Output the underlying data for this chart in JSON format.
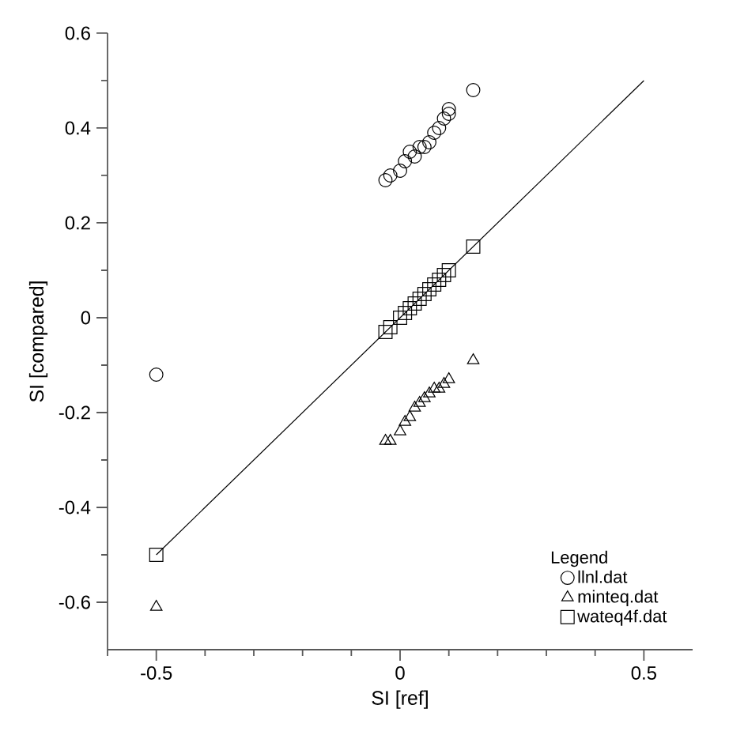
{
  "chart_data": {
    "type": "scatter",
    "xlabel": "SI [ref]",
    "ylabel": "SI [compared]",
    "legend_title": "Legend",
    "legend": "bottom right",
    "grid": false,
    "xlim": [
      -0.6,
      0.6
    ],
    "ylim": [
      -0.7,
      0.6
    ],
    "xticks": [
      {
        "value": -0.6,
        "label": null
      },
      -0.5,
      {
        "value": -0.4,
        "label": null
      },
      {
        "value": -0.3,
        "label": null
      },
      {
        "value": -0.2,
        "label": null
      },
      {
        "value": -0.1,
        "label": null
      },
      0,
      {
        "value": 0.1,
        "label": null
      },
      {
        "value": 0.2,
        "label": null
      },
      {
        "value": 0.3,
        "label": null
      },
      {
        "value": 0.4,
        "label": null
      },
      0.5
    ],
    "yticks": [
      -0.6,
      {
        "value": -0.5,
        "label": null
      },
      -0.4,
      {
        "value": -0.3,
        "label": null
      },
      -0.2,
      {
        "value": -0.1,
        "label": null
      },
      0,
      {
        "value": 0.1,
        "label": null
      },
      0.2,
      {
        "value": 0.3,
        "label": null
      },
      0.4,
      {
        "value": 0.5,
        "label": null
      },
      0.6
    ],
    "series": [
      {
        "type": "line",
        "color": "#000000",
        "marker": "none",
        "x": [
          -0.5,
          0.5
        ],
        "values": [
          -0.5,
          0.5
        ]
      },
      {
        "name": "llnl.dat",
        "color": "#000000",
        "marker": "circle",
        "x": [
          -0.5,
          0.15,
          -0.03,
          -0.02,
          0,
          0.01,
          0.02,
          0.03,
          0.04,
          0.05,
          0.06,
          0.07,
          0.08,
          0.09,
          0.1,
          0.1
        ],
        "values": [
          -0.12,
          0.48,
          0.29,
          0.3,
          0.31,
          0.33,
          0.35,
          0.34,
          0.36,
          0.36,
          0.37,
          0.39,
          0.4,
          0.42,
          0.44,
          0.43
        ]
      },
      {
        "name": "minteq.dat",
        "color": "#000000",
        "marker": "triangle",
        "x": [
          -0.5,
          0.15,
          -0.03,
          -0.02,
          0,
          0.01,
          0.02,
          0.03,
          0.04,
          0.05,
          0.06,
          0.07,
          0.08,
          0.09,
          0.1
        ],
        "values": [
          -0.61,
          -0.09,
          -0.26,
          -0.26,
          -0.24,
          -0.22,
          -0.21,
          -0.19,
          -0.18,
          -0.17,
          -0.16,
          -0.15,
          -0.15,
          -0.14,
          -0.13
        ]
      },
      {
        "name": "wateq4f.dat",
        "color": "#000000",
        "marker": "square",
        "x": [
          -0.5,
          -0.03,
          -0.02,
          0,
          0.01,
          0.02,
          0.03,
          0.04,
          0.05,
          0.06,
          0.07,
          0.08,
          0.09,
          0.1,
          0.15
        ],
        "values": [
          -0.5,
          -0.03,
          -0.02,
          0,
          0.01,
          0.02,
          0.03,
          0.04,
          0.05,
          0.06,
          0.07,
          0.08,
          0.09,
          0.1,
          0.15
        ]
      }
    ]
  }
}
